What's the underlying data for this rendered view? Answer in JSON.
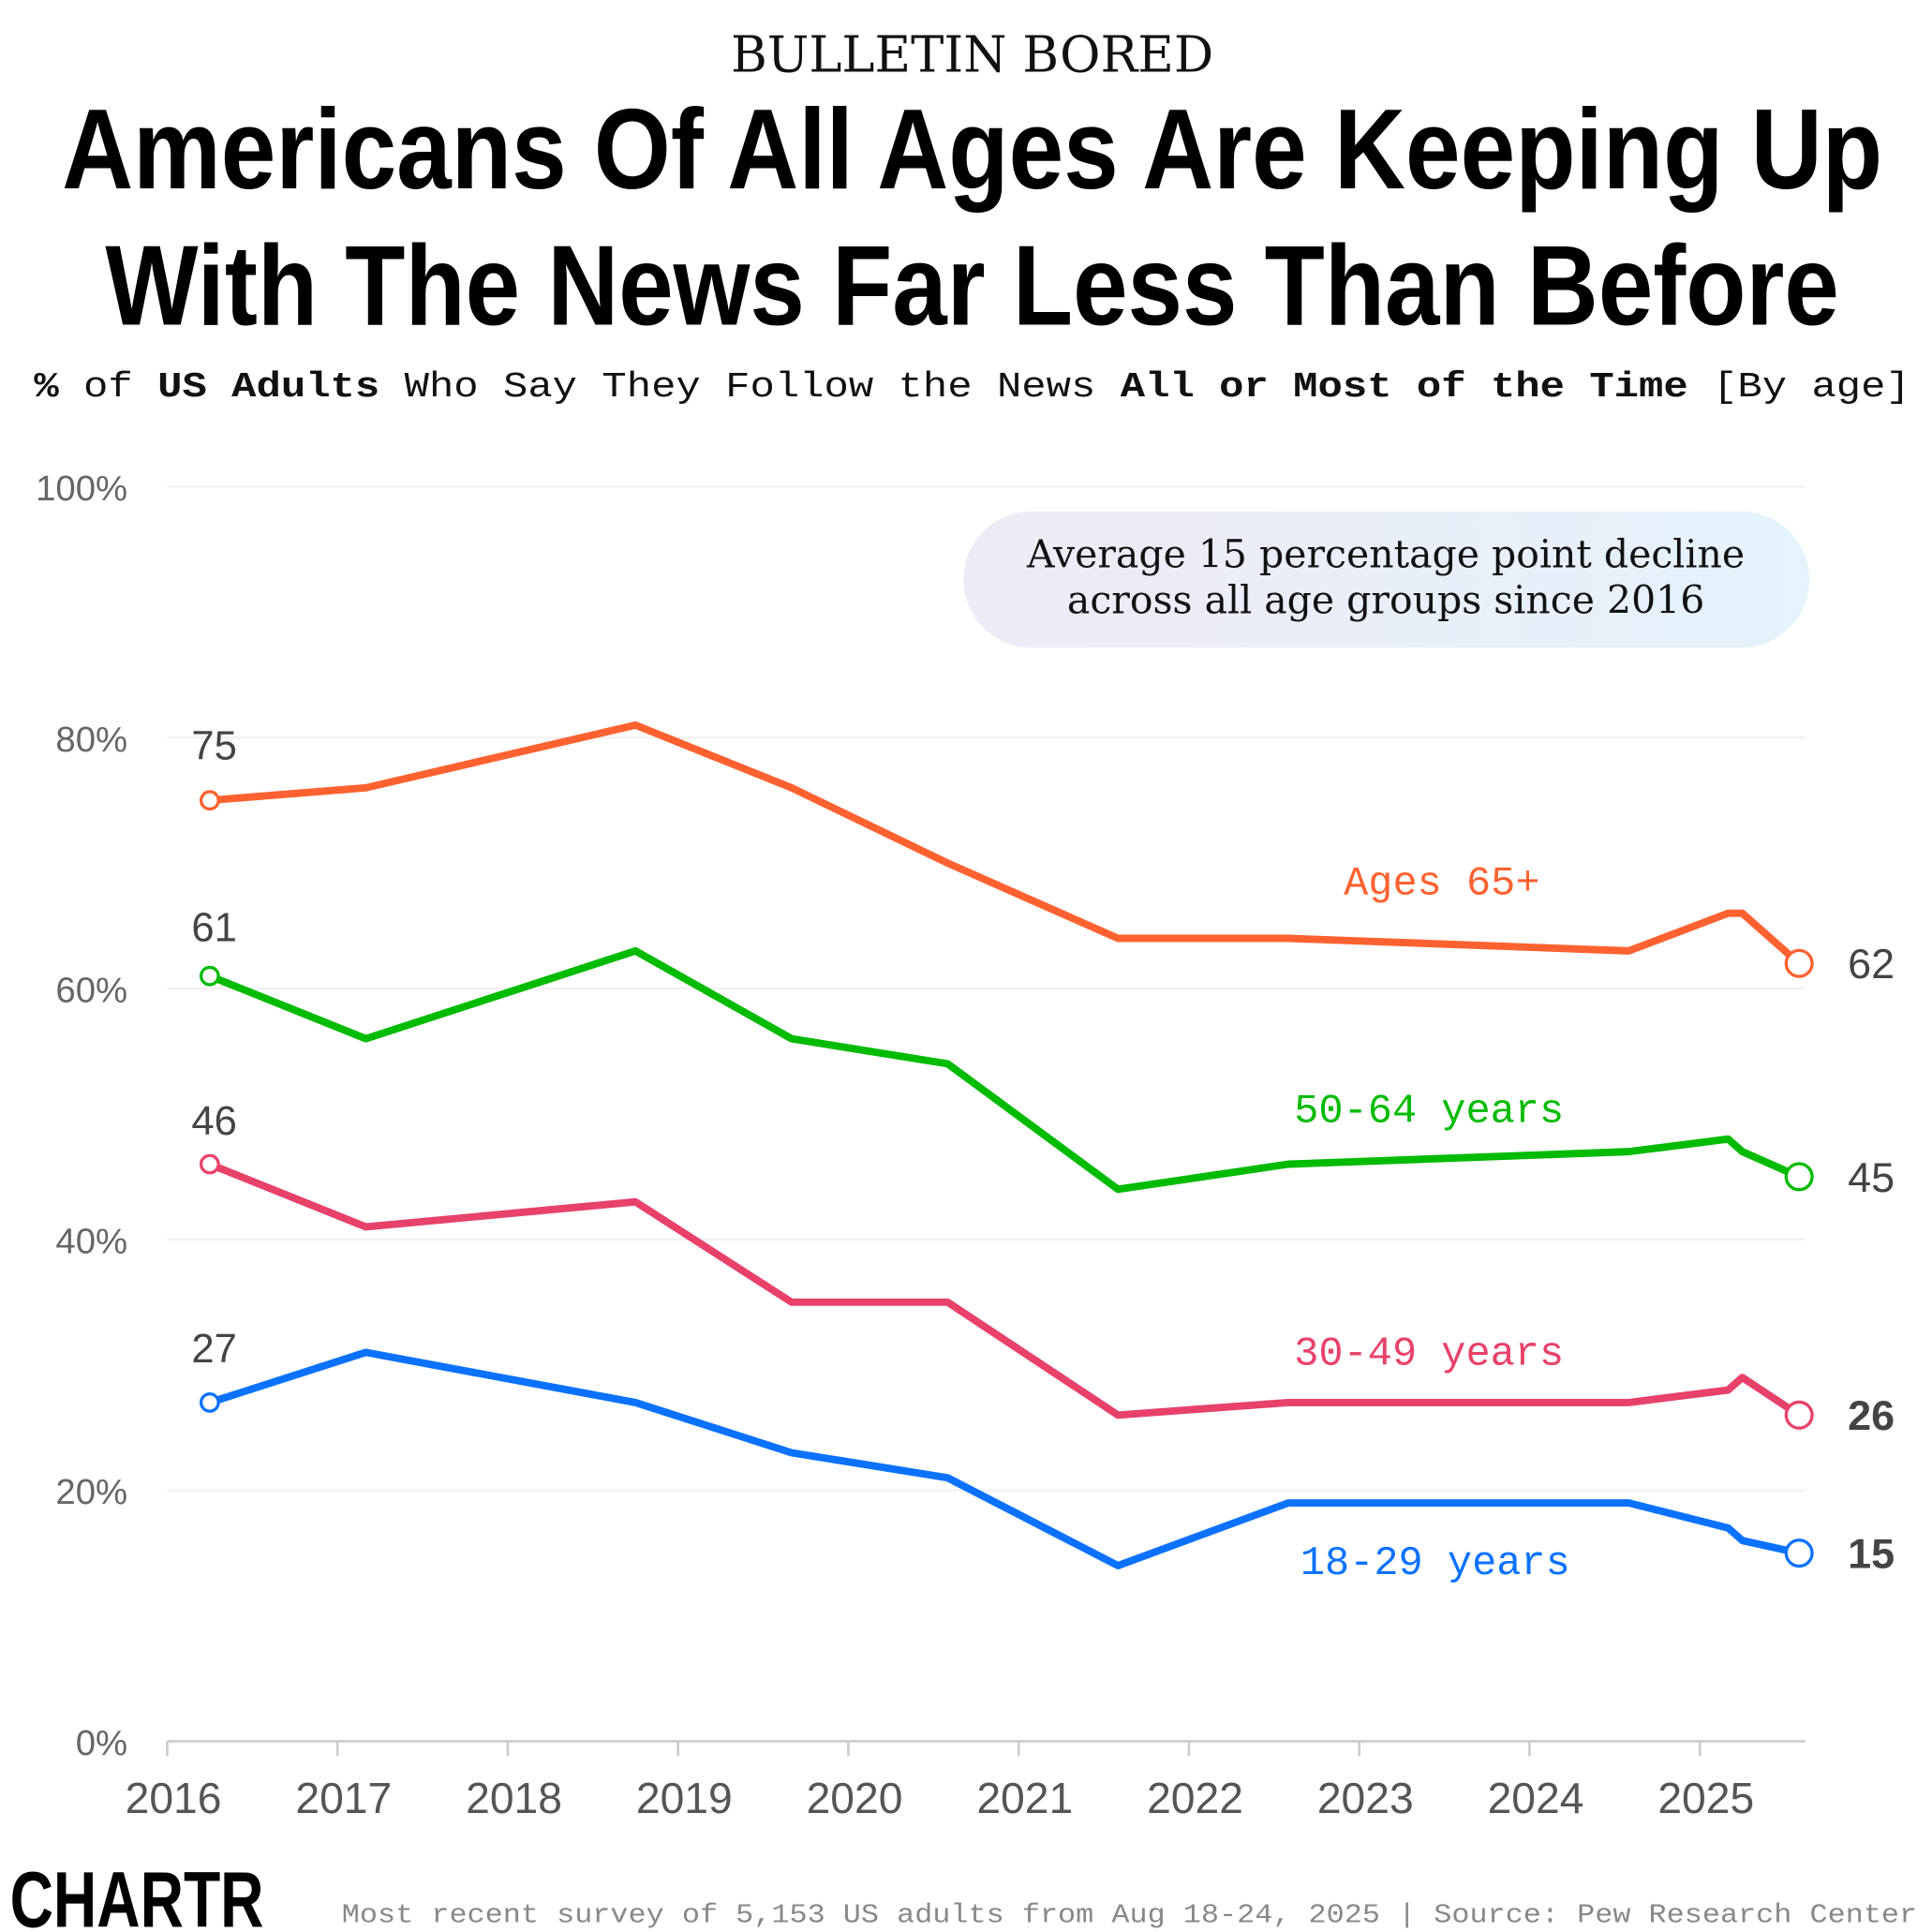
{
  "header": {
    "kicker": "BULLETIN BORED",
    "title_line1": "Americans Of All Ages Are Keeping Up",
    "title_line2": "With The News Far Less Than Before",
    "subtitle_parts": [
      {
        "text": "%",
        "bold": true
      },
      {
        "text": " of ",
        "bold": false
      },
      {
        "text": "US Adults",
        "bold": true
      },
      {
        "text": " Who Say They Follow the News ",
        "bold": false
      },
      {
        "text": "All or Most of the Time",
        "bold": true
      },
      {
        "text": " [By age]",
        "bold": false
      }
    ]
  },
  "annotation": {
    "line1": "Average 15 percentage point decline",
    "line2": "across all age groups since 2016"
  },
  "footer": {
    "logo": "CHARTR",
    "source": "Most recent survey of 5,153 US adults from Aug 18-24, 2025 | Source: Pew Research Center"
  },
  "chart_data": {
    "type": "line",
    "title": "Americans Of All Ages Are Keeping Up With The News Far Less Than Before",
    "subtitle": "% of US Adults Who Say They Follow the News All or Most of the Time [By age]",
    "x": [
      "2016-04",
      "2017-03",
      "2018-10",
      "2019-09",
      "2020-08",
      "2021-08",
      "2022-08",
      "2024-08",
      "2025-03",
      "2025-04",
      "2025-08"
    ],
    "xlim": [
      "2016-01",
      "2025-08"
    ],
    "x_ticks": [
      "2016",
      "2017",
      "2018",
      "2019",
      "2020",
      "2021",
      "2022",
      "2023",
      "2024",
      "2025"
    ],
    "ylim": [
      0,
      100
    ],
    "y_ticks": [
      "0%",
      "20%",
      "40%",
      "60%",
      "80%",
      "100%"
    ],
    "grid": true,
    "series": [
      {
        "name": "Ages 65+",
        "color": "#FF6230",
        "values": [
          75,
          76,
          81,
          76,
          70,
          64,
          64,
          63,
          66,
          66,
          62
        ],
        "start_label": "75",
        "end_label": "62",
        "end_bold": false
      },
      {
        "name": "50-64 years",
        "color": "#00BB00",
        "values": [
          61,
          56,
          63,
          56,
          54,
          44,
          46,
          47,
          48,
          47,
          45
        ],
        "start_label": "61",
        "end_label": "45",
        "end_bold": false
      },
      {
        "name": "30-49 years",
        "color": "#E8416A",
        "values": [
          46,
          41,
          43,
          35,
          35,
          26,
          27,
          27,
          28,
          29,
          26
        ],
        "start_label": "46",
        "end_label": "26",
        "end_bold": true
      },
      {
        "name": "18-29 years",
        "color": "#0A72FF",
        "values": [
          27,
          31,
          27,
          23,
          21,
          14,
          19,
          19,
          17,
          16,
          15
        ],
        "start_label": "27",
        "end_label": "15",
        "end_bold": true
      }
    ]
  }
}
